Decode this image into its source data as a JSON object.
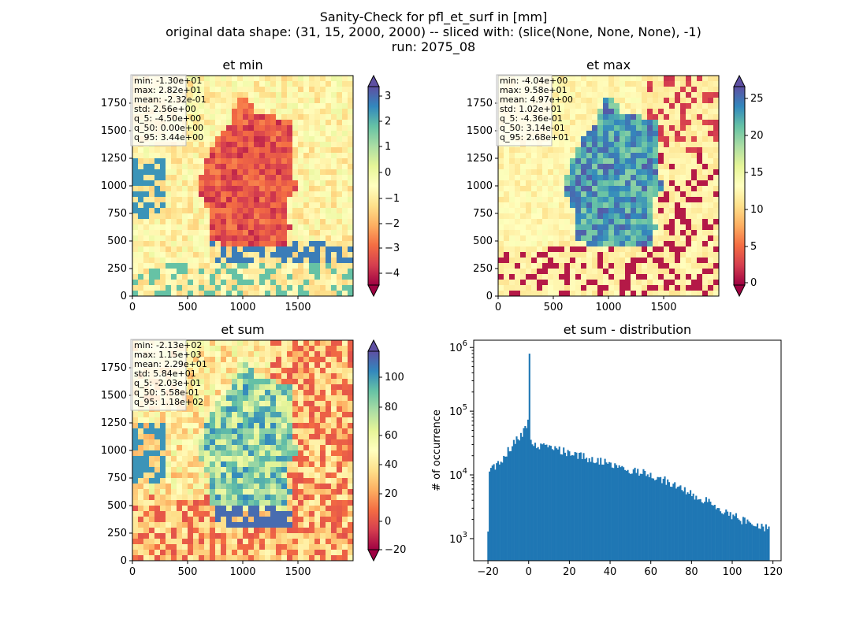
{
  "figure": {
    "title_lines": [
      "Sanity-Check for pfl_et_surf in [mm]",
      "original data shape: (31, 15, 2000, 2000) -- sliced with: (slice(None, None, None), -1)",
      "run: 2075_08"
    ]
  },
  "chart_data": [
    {
      "type": "heatmap",
      "title": "et min",
      "xticks": [
        "0",
        "500",
        "1000",
        "1500"
      ],
      "yticks": [
        "0",
        "250",
        "500",
        "750",
        "1000",
        "1250",
        "1500",
        "1750"
      ],
      "xlim": [
        0,
        2000
      ],
      "ylim": [
        0,
        2000
      ],
      "colormap": "Spectral",
      "colorbar": {
        "range": [
          -4.5,
          3.44
        ],
        "ticks": [
          "3",
          "2",
          "1",
          "0",
          "−1",
          "−2",
          "−3",
          "−4"
        ],
        "extend": "both"
      },
      "stats": [
        "min: -1.30e+01",
        "max: 2.82e+01",
        "mean: -2.32e-01",
        "std: 2.56e+00",
        "q_5: -4.50e+00",
        "q_50: 0.00e+00",
        "q_95: 3.44e+00"
      ]
    },
    {
      "type": "heatmap",
      "title": "et max",
      "xticks": [
        "0",
        "500",
        "1000",
        "1500"
      ],
      "yticks": [
        "0",
        "250",
        "500",
        "750",
        "1000",
        "1250",
        "1500",
        "1750"
      ],
      "xlim": [
        0,
        2000
      ],
      "ylim": [
        0,
        2000
      ],
      "colormap": "Spectral",
      "colorbar": {
        "range": [
          -0.436,
          26.8
        ],
        "ticks": [
          "25",
          "20",
          "15",
          "10",
          "5",
          "0"
        ],
        "extend": "both"
      },
      "stats": [
        "min: -4.04e+00",
        "max: 9.58e+01",
        "mean: 4.97e+00",
        "std: 1.02e+01",
        "q_5: -4.36e-01",
        "q_50: 3.14e-01",
        "q_95: 2.68e+01"
      ]
    },
    {
      "type": "heatmap",
      "title": "et sum",
      "xticks": [
        "0",
        "500",
        "1000",
        "1500"
      ],
      "yticks": [
        "0",
        "250",
        "500",
        "750",
        "1000",
        "1250",
        "1500",
        "1750"
      ],
      "xlim": [
        0,
        2000
      ],
      "ylim": [
        0,
        2000
      ],
      "colormap": "Spectral",
      "colorbar": {
        "range": [
          -20.3,
          118
        ],
        "ticks": [
          "100",
          "80",
          "60",
          "40",
          "20",
          "0",
          "−20"
        ],
        "extend": "both"
      },
      "stats": [
        "min: -2.13e+02",
        "max: 1.15e+03",
        "mean: 2.29e+01",
        "std: 5.84e+01",
        "q_5: -2.03e+01",
        "q_50: 5.58e-01",
        "q_95: 1.18e+02"
      ]
    },
    {
      "type": "bar",
      "title": "et sum - distribution",
      "ylabel": "# of occurrence",
      "xlabel": "",
      "yscale": "log",
      "xlim": [
        -27,
        124
      ],
      "ylim": [
        450,
        1300000
      ],
      "xticks": [
        "−20",
        "0",
        "20",
        "40",
        "60",
        "80",
        "100",
        "120"
      ],
      "yticks": [
        "10^3",
        "10^4",
        "10^5",
        "10^6"
      ],
      "color": "#1f77b4",
      "bin_width": 0.7,
      "histogram_anchors": [
        [
          -20,
          11000
        ],
        [
          -18,
          13000
        ],
        [
          -16,
          14500
        ],
        [
          -14,
          17000
        ],
        [
          -12,
          21000
        ],
        [
          -10,
          25000
        ],
        [
          -8,
          30000
        ],
        [
          -6,
          36000
        ],
        [
          -4,
          44000
        ],
        [
          -2,
          55000
        ],
        [
          -0.7,
          70000
        ],
        [
          0,
          800000
        ],
        [
          0.7,
          40000
        ],
        [
          2,
          32000
        ],
        [
          5,
          29000
        ],
        [
          10,
          27000
        ],
        [
          20,
          22000
        ],
        [
          30,
          18000
        ],
        [
          40,
          15000
        ],
        [
          50,
          12000
        ],
        [
          60,
          10000
        ],
        [
          70,
          7500
        ],
        [
          80,
          5000
        ],
        [
          90,
          3500
        ],
        [
          100,
          2300
        ],
        [
          110,
          1600
        ],
        [
          118,
          1500
        ]
      ]
    }
  ]
}
